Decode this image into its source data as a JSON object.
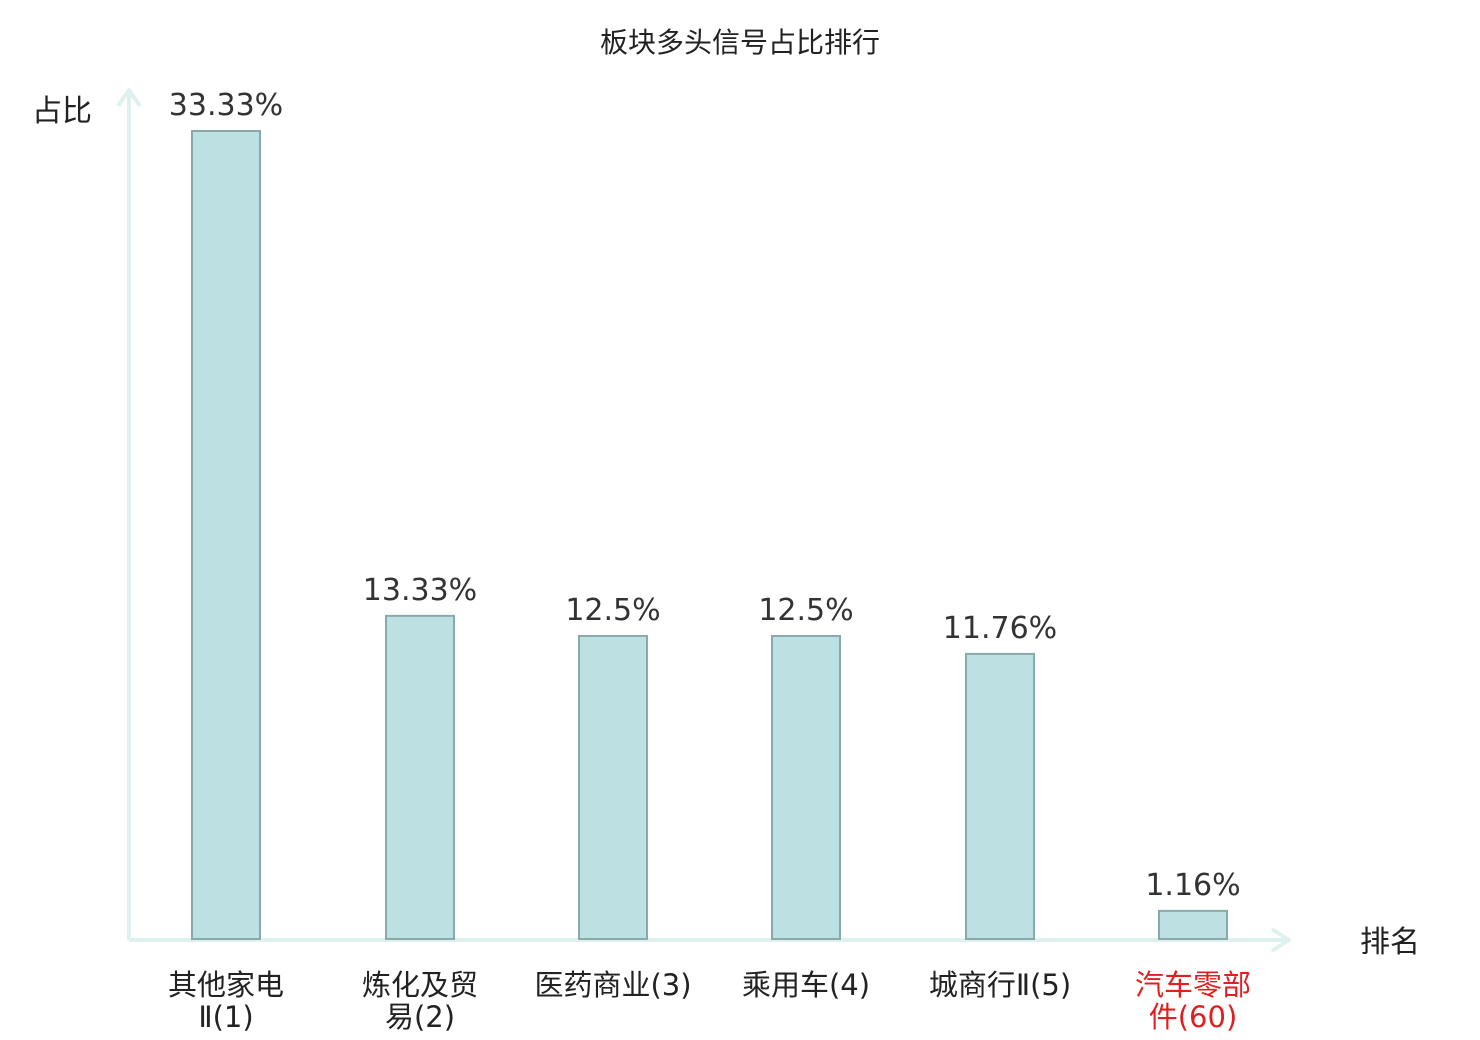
{
  "chart_data": {
    "type": "bar",
    "title": "板块多头信号占比排行",
    "ylabel": "占比",
    "xlabel": "排名",
    "categories": [
      [
        "其他家电",
        "Ⅱ(1)"
      ],
      [
        "炼化及贸",
        "易(2)"
      ],
      [
        "医药商业(3)"
      ],
      [
        "乘用车(4)"
      ],
      [
        "城商行Ⅱ(5)"
      ],
      [
        "汽车零部",
        "件(60)"
      ]
    ],
    "values": [
      33.33,
      13.33,
      12.5,
      12.5,
      11.76,
      1.16
    ],
    "value_labels": [
      "33.33%",
      "13.33%",
      "12.5%",
      "12.5%",
      "11.76%",
      "1.16%"
    ],
    "highlight_index": 5,
    "ylim": [
      0,
      33.33
    ],
    "grid": false,
    "colors": {
      "bar_fill": "#bde0e3",
      "bar_stroke": "#8aa9ab",
      "axis": "#dff1ee",
      "highlight_label": "#e02020"
    }
  }
}
